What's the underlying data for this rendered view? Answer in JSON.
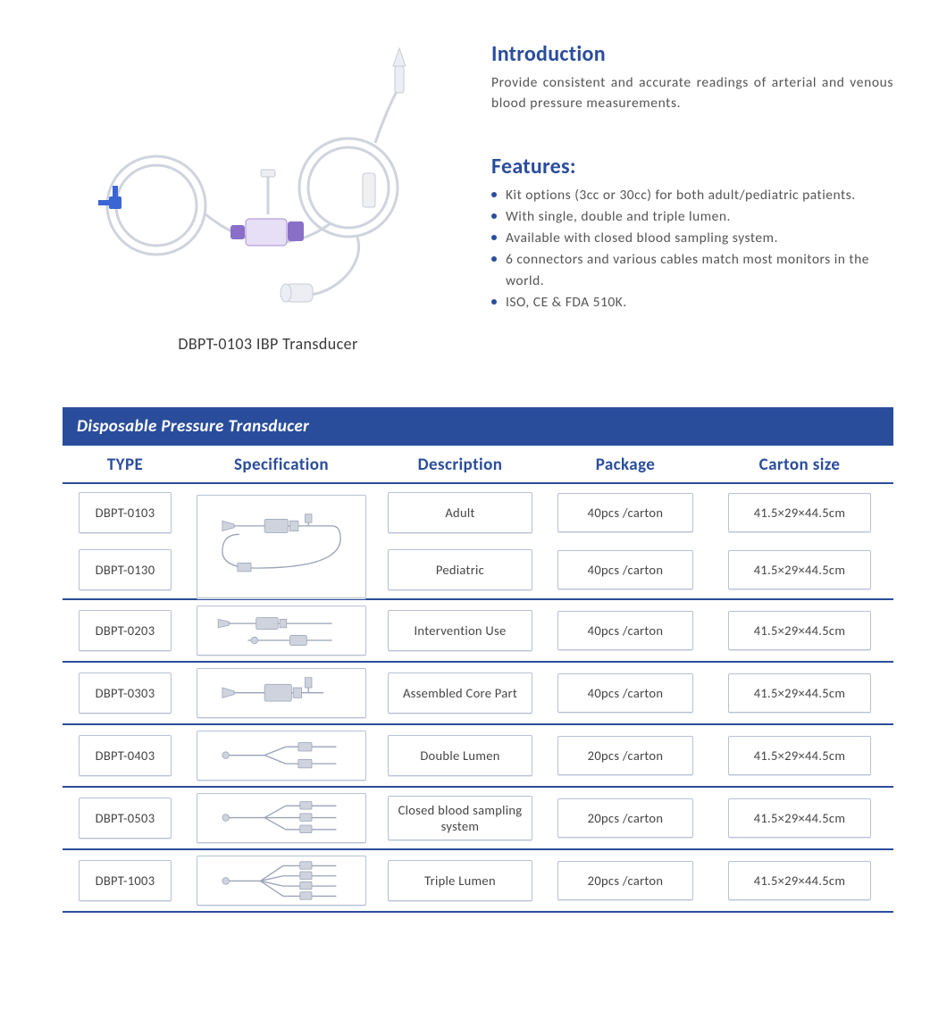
{
  "colors": {
    "primary": "#2a4d9b",
    "text": "#555555",
    "heading": "#2a4d9b",
    "border": "#b8c0d6",
    "white": "#ffffff"
  },
  "typography": {
    "heading_size_pt": 18,
    "body_size_pt": 11.5,
    "table_header_size_pt": 14,
    "cell_size_pt": 11
  },
  "product": {
    "caption": "DBPT-0103 IBP Transducer"
  },
  "intro": {
    "heading": "Introduction",
    "text": "Provide consistent and accurate readings of arterial and venous blood pressure measurements."
  },
  "features": {
    "heading": "Features:",
    "items": [
      "Kit options (3cc or 30cc) for both adult/pediatric patients.",
      "With single, double and triple lumen.",
      "Available with closed blood sampling system.",
      "6 connectors and various cables match most monitors in the world.",
      "ISO, CE & FDA 510K."
    ]
  },
  "table": {
    "title": "Disposable Pressure Transducer",
    "columns": [
      "TYPE",
      "Specification",
      "Description",
      "Package",
      "Carton  size"
    ],
    "groups": [
      {
        "spec_diagram": "single",
        "rows": [
          {
            "type": "DBPT-0103",
            "description": "Adult",
            "package": "40pcs /carton",
            "carton_size": "41.5×29×44.5cm"
          },
          {
            "type": "DBPT-0130",
            "description": "Pediatric",
            "package": "40pcs /carton",
            "carton_size": "41.5×29×44.5cm"
          }
        ]
      },
      {
        "spec_diagram": "intervention",
        "rows": [
          {
            "type": "DBPT-0203",
            "description": "Intervention Use",
            "package": "40pcs /carton",
            "carton_size": "41.5×29×44.5cm"
          }
        ]
      },
      {
        "spec_diagram": "core",
        "rows": [
          {
            "type": "DBPT-0303",
            "description": "Assembled Core Part",
            "package": "40pcs /carton",
            "carton_size": "41.5×29×44.5cm"
          }
        ]
      },
      {
        "spec_diagram": "double",
        "rows": [
          {
            "type": "DBPT-0403",
            "description": "Double Lumen",
            "package": "20pcs /carton",
            "carton_size": "41.5×29×44.5cm"
          }
        ]
      },
      {
        "spec_diagram": "closed",
        "rows": [
          {
            "type": "DBPT-0503",
            "description": "Closed blood sampling system",
            "package": "20pcs /carton",
            "carton_size": "41.5×29×44.5cm"
          }
        ]
      },
      {
        "spec_diagram": "triple",
        "rows": [
          {
            "type": "DBPT-1003",
            "description": "Triple Lumen",
            "package": "20pcs /carton",
            "carton_size": "41.5×29×44.5cm"
          }
        ]
      }
    ]
  }
}
